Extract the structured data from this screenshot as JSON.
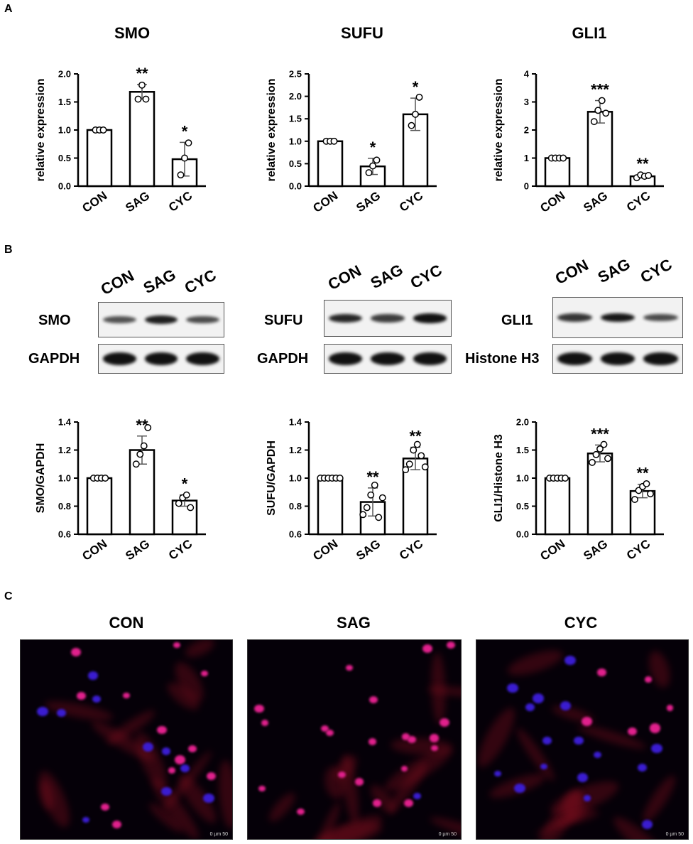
{
  "panel_labels": {
    "a": "A",
    "b": "B",
    "c": "C"
  },
  "chart_data": [
    {
      "type": "bar",
      "title": "SMO",
      "ylabel": "relative expression",
      "categories": [
        "CON",
        "SAG",
        "CYC"
      ],
      "values": [
        1.0,
        1.68,
        0.48
      ],
      "error": [
        0.02,
        0.13,
        0.3
      ],
      "points": [
        [
          1.0,
          1.0,
          1.0
        ],
        [
          1.55,
          1.8,
          1.55
        ],
        [
          0.2,
          0.5,
          0.77
        ]
      ],
      "significance": [
        "",
        "**",
        "*"
      ],
      "ylim": [
        0,
        2.0
      ],
      "ticks": [
        "0.0",
        "0.5",
        "1.0",
        "1.5",
        "2.0"
      ]
    },
    {
      "type": "bar",
      "title": "SUFU",
      "ylabel": "relative expression",
      "categories": [
        "CON",
        "SAG",
        "CYC"
      ],
      "values": [
        1.0,
        0.44,
        1.6
      ],
      "error": [
        0.02,
        0.18,
        0.36
      ],
      "points": [
        [
          1.0,
          1.0,
          1.0
        ],
        [
          0.3,
          0.45,
          0.58
        ],
        [
          1.35,
          1.6,
          1.98
        ]
      ],
      "significance": [
        "",
        "*",
        "*"
      ],
      "ylim": [
        0,
        2.5
      ],
      "ticks": [
        "0.0",
        "0.5",
        "1.0",
        "1.5",
        "2.0",
        "2.5"
      ]
    },
    {
      "type": "bar",
      "title": "GLI1",
      "ylabel": "relative expression",
      "categories": [
        "CON",
        "SAG",
        "CYC"
      ],
      "values": [
        1.0,
        2.65,
        0.35
      ],
      "error": [
        0.02,
        0.4,
        0.06
      ],
      "points": [
        [
          1.0,
          1.0,
          1.0,
          1.0
        ],
        [
          2.3,
          2.7,
          3.05,
          2.6
        ],
        [
          0.3,
          0.4,
          0.35,
          0.38
        ]
      ],
      "significance": [
        "",
        "***",
        "**"
      ],
      "ylim": [
        0,
        4
      ],
      "ticks": [
        "0",
        "1",
        "2",
        "3",
        "4"
      ]
    },
    {
      "type": "bar",
      "title": "",
      "ylabel": "SMO/GAPDH",
      "categories": [
        "CON",
        "SAG",
        "CYC"
      ],
      "values": [
        1.0,
        1.2,
        0.84
      ],
      "error": [
        0.005,
        0.1,
        0.04
      ],
      "points": [
        [
          1.0,
          1.0,
          1.0,
          1.0
        ],
        [
          1.1,
          1.17,
          1.23,
          1.36
        ],
        [
          0.82,
          0.86,
          0.88,
          0.79
        ]
      ],
      "significance": [
        "",
        "**",
        "*"
      ],
      "ylim": [
        0.6,
        1.4
      ],
      "ticks": [
        "0.6",
        "0.8",
        "1.0",
        "1.2",
        "1.4"
      ]
    },
    {
      "type": "bar",
      "title": "",
      "ylabel": "SUFU/GAPDH",
      "categories": [
        "CON",
        "SAG",
        "CYC"
      ],
      "values": [
        1.0,
        0.83,
        1.14
      ],
      "error": [
        0.005,
        0.1,
        0.08
      ],
      "points": [
        [
          1.0,
          1.0,
          1.0,
          1.0,
          1.0,
          1.0
        ],
        [
          0.74,
          0.79,
          0.88,
          0.95,
          0.72,
          0.86
        ],
        [
          1.06,
          1.1,
          1.2,
          1.24,
          1.16,
          1.08
        ]
      ],
      "significance": [
        "",
        "**",
        "**"
      ],
      "ylim": [
        0.6,
        1.4
      ],
      "ticks": [
        "0.6",
        "0.8",
        "1.0",
        "1.2",
        "1.4"
      ]
    },
    {
      "type": "bar",
      "title": "",
      "ylabel": "GLI1/Histone H3",
      "categories": [
        "CON",
        "SAG",
        "CYC"
      ],
      "values": [
        1.0,
        1.44,
        0.77
      ],
      "error": [
        0.01,
        0.15,
        0.12
      ],
      "points": [
        [
          1.0,
          1.0,
          1.0,
          1.0,
          1.0
        ],
        [
          1.28,
          1.42,
          1.52,
          1.6,
          1.35
        ],
        [
          0.62,
          0.78,
          0.85,
          0.9,
          0.72
        ]
      ],
      "significance": [
        "",
        "***",
        "**"
      ],
      "ylim": [
        0,
        2.0
      ],
      "ticks": [
        "0.0",
        "0.5",
        "1.0",
        "1.5",
        "2.0"
      ]
    }
  ],
  "blots": [
    {
      "lanes": [
        "CON",
        "SAG",
        "CYC"
      ],
      "target": "SMO",
      "loading": "GAPDH",
      "target_intensity": [
        0.55,
        0.9,
        0.6
      ],
      "loading_intensity": [
        1.0,
        1.0,
        1.0
      ]
    },
    {
      "lanes": [
        "CON",
        "SAG",
        "CYC"
      ],
      "target": "SUFU",
      "loading": "GAPDH",
      "target_intensity": [
        0.85,
        0.7,
        1.0
      ],
      "loading_intensity": [
        1.0,
        1.0,
        1.0
      ]
    },
    {
      "lanes": [
        "CON",
        "SAG",
        "CYC"
      ],
      "target": "GLI1",
      "loading": "Histone H3",
      "target_intensity": [
        0.75,
        0.95,
        0.6
      ],
      "loading_intensity": [
        1.0,
        1.0,
        1.0
      ]
    }
  ],
  "micrographs": [
    {
      "title": "CON",
      "scale_text": "0   µm   50"
    },
    {
      "title": "SAG",
      "scale_text": "0   µm   50"
    },
    {
      "title": "CYC",
      "scale_text": "0   µm   50"
    }
  ],
  "colors": {
    "bar_fill": "#ffffff",
    "bar_stroke": "#000000",
    "nucleus_pink": "#e0208c",
    "nucleus_blue": "#3a1cd0",
    "cytoplasm_red": "#8a1020"
  }
}
